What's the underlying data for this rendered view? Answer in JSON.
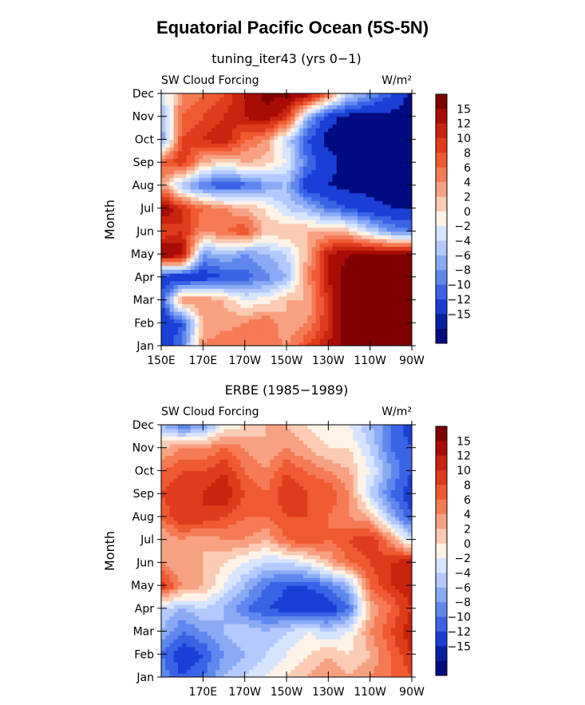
{
  "figure": {
    "title": "Equatorial Pacific Ocean (5S-5N)"
  },
  "colorbar": {
    "levels": [
      "15",
      "12",
      "10",
      "8",
      "6",
      "4",
      "2",
      "0",
      "−2",
      "−4",
      "−6",
      "−8",
      "−10",
      "−12",
      "−15"
    ],
    "colors": [
      "#800000",
      "#a90c05",
      "#c8240f",
      "#de3c1d",
      "#ef5a32",
      "#f57b55",
      "#f8a182",
      "#fbcbb4",
      "#fff2e6",
      "#d6e4ff",
      "#b3c9ff",
      "#8aaaf4",
      "#5f87ee",
      "#3a63e6",
      "#1a3fd6",
      "#06209f",
      "#000b80"
    ]
  },
  "chart_data": [
    {
      "type": "heatmap",
      "title": "tuning_iter43 (yrs 0−1)",
      "left_label": "SW Cloud Forcing",
      "right_label": "W/m²",
      "ylabel": "Month",
      "x_ticks": [
        "150E",
        "170E",
        "170W",
        "150W",
        "130W",
        "110W",
        "90W"
      ],
      "y_ticks": [
        "Jan",
        "Feb",
        "Mar",
        "Apr",
        "May",
        "Jun",
        "Jul",
        "Aug",
        "Sep",
        "Oct",
        "Nov",
        "Dec"
      ],
      "xlim": [
        150,
        270
      ],
      "x": [
        150,
        160,
        170,
        180,
        190,
        200,
        210,
        220,
        230,
        240,
        250,
        260,
        270
      ],
      "z": [
        [
          -14,
          -10,
          4,
          6,
          6,
          5,
          4,
          8,
          12,
          18,
          18,
          18,
          18
        ],
        [
          -15,
          -12,
          2,
          3,
          4,
          6,
          2,
          4,
          10,
          18,
          18,
          18,
          18
        ],
        [
          -12,
          4,
          4,
          2,
          -2,
          -1,
          2,
          2,
          10,
          18,
          18,
          18,
          18
        ],
        [
          -14,
          -15,
          -14,
          -12,
          -11,
          -9,
          -6,
          4,
          12,
          18,
          18,
          18,
          18
        ],
        [
          15,
          14,
          -8,
          -6,
          -8,
          -6,
          -4,
          2,
          12,
          15,
          15,
          15,
          15
        ],
        [
          8,
          10,
          4,
          6,
          8,
          1,
          2,
          2,
          2,
          1,
          -4,
          -8,
          -10
        ],
        [
          15,
          10,
          6,
          4,
          2,
          0,
          -4,
          -6,
          -10,
          -12,
          -14,
          -15,
          -15
        ],
        [
          4,
          -6,
          -10,
          -12,
          -11,
          -8,
          -6,
          -14,
          -15,
          -16,
          -16,
          -16,
          -16
        ],
        [
          6,
          10,
          2,
          0,
          2,
          1,
          -2,
          -10,
          -14,
          -16,
          -16,
          -16,
          -16
        ],
        [
          -8,
          8,
          10,
          12,
          6,
          4,
          -4,
          -12,
          -16,
          -16,
          -16,
          -16,
          -16
        ],
        [
          -6,
          6,
          8,
          10,
          12,
          14,
          10,
          -6,
          -14,
          -16,
          -16,
          -16,
          -16
        ],
        [
          -4,
          4,
          6,
          8,
          12,
          16,
          16,
          14,
          6,
          -4,
          -8,
          -12,
          -16
        ]
      ]
    },
    {
      "type": "heatmap",
      "title": "ERBE (1985−1989)",
      "left_label": "SW Cloud Forcing",
      "right_label": "W/m²",
      "ylabel": "Month",
      "x_ticks": [
        "170E",
        "170W",
        "150W",
        "130W",
        "110W",
        "90W"
      ],
      "y_ticks": [
        "Jan",
        "Feb",
        "Mar",
        "Apr",
        "May",
        "Jun",
        "Jul",
        "Aug",
        "Sep",
        "Oct",
        "Nov",
        "Dec"
      ],
      "xlim": [
        150,
        270
      ],
      "x": [
        150,
        160,
        170,
        180,
        190,
        200,
        210,
        220,
        230,
        240,
        250,
        260,
        270
      ],
      "z": [
        [
          -8,
          -12,
          -10,
          -6,
          -4,
          -2,
          0,
          2,
          4,
          2,
          4,
          6,
          8
        ],
        [
          -10,
          -14,
          -12,
          -8,
          -6,
          -4,
          -2,
          0,
          2,
          0,
          2,
          6,
          10
        ],
        [
          -6,
          -10,
          -8,
          -6,
          -4,
          -6,
          -4,
          -2,
          -4,
          -2,
          4,
          8,
          12
        ],
        [
          -4,
          -6,
          -4,
          -6,
          -10,
          -12,
          -13,
          -14,
          -14,
          -10,
          2,
          6,
          10
        ],
        [
          10,
          4,
          2,
          -2,
          -6,
          -10,
          -12,
          -12,
          -10,
          -6,
          6,
          10,
          12
        ],
        [
          4,
          2,
          2,
          0,
          -2,
          -4,
          -4,
          -2,
          2,
          6,
          8,
          10,
          12
        ],
        [
          2,
          4,
          2,
          4,
          4,
          2,
          6,
          8,
          6,
          8,
          10,
          4,
          -4
        ],
        [
          6,
          10,
          10,
          8,
          6,
          6,
          8,
          8,
          6,
          4,
          2,
          -6,
          -12
        ],
        [
          8,
          10,
          10,
          12,
          8,
          6,
          10,
          8,
          8,
          4,
          -4,
          -10,
          -14
        ],
        [
          6,
          8,
          8,
          10,
          6,
          4,
          8,
          6,
          4,
          2,
          -2,
          -8,
          -12
        ],
        [
          2,
          4,
          4,
          6,
          4,
          2,
          4,
          2,
          0,
          0,
          -4,
          -10,
          -12
        ],
        [
          -6,
          -10,
          -8,
          -2,
          0,
          2,
          2,
          0,
          -2,
          -2,
          -6,
          -10,
          -14
        ]
      ]
    }
  ]
}
